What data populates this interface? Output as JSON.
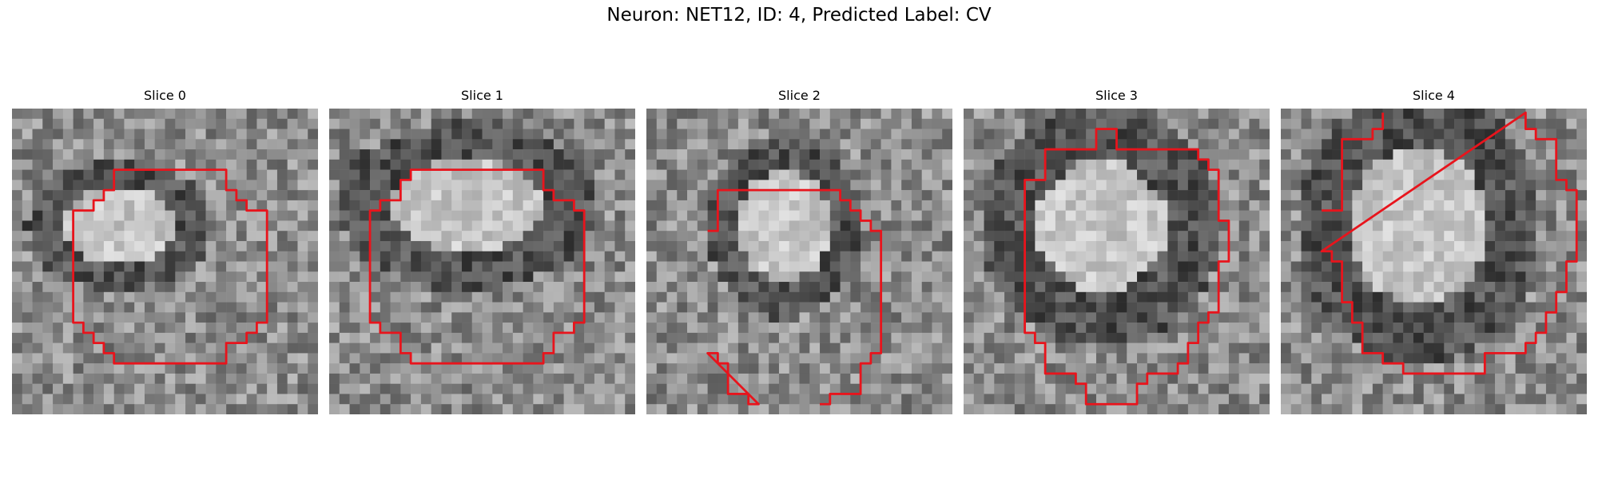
{
  "figure": {
    "title": "Neuron: NET12, ID: 4, Predicted Label: CV"
  },
  "colors": {
    "contour": "#e8141c"
  },
  "grid_size": 30,
  "panels": [
    {
      "title": "Slice 0",
      "seed": 11
    },
    {
      "title": "Slice 1",
      "seed": 23
    },
    {
      "title": "Slice 2",
      "seed": 37
    },
    {
      "title": "Slice 3",
      "seed": 41
    },
    {
      "title": "Slice 4",
      "seed": 59
    }
  ]
}
